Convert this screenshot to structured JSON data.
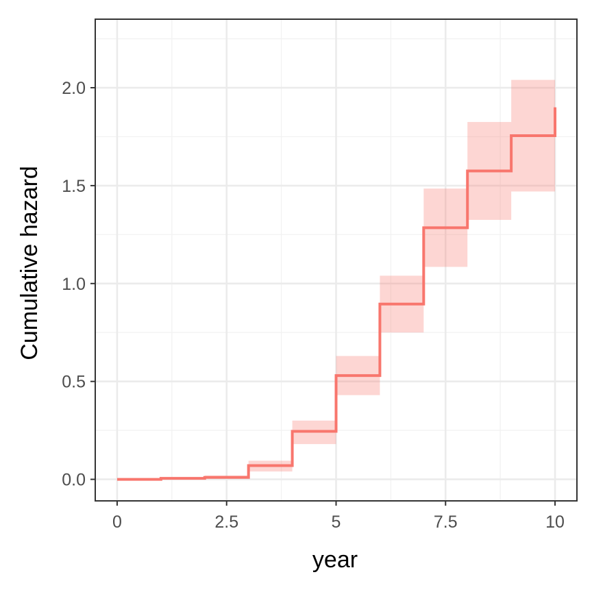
{
  "chart_data": {
    "type": "line",
    "step": true,
    "title": "",
    "xlabel": "year",
    "ylabel": "Cumulative hazard",
    "xlim": [
      -0.5,
      10.5
    ],
    "ylim": [
      -0.11,
      2.35
    ],
    "xticks": [
      0,
      2.5,
      5,
      7.5,
      10
    ],
    "xtick_labels": [
      "0",
      "2.5",
      "5",
      "7.5",
      "10"
    ],
    "yticks": [
      0.0,
      0.5,
      1.0,
      1.5,
      2.0
    ],
    "ytick_labels": [
      "0.0",
      "0.5",
      "1.0",
      "1.5",
      "2.0"
    ],
    "grid": true,
    "legend": "none",
    "colors": {
      "line": "#F8766D",
      "band": "#F8766D"
    },
    "series": [
      {
        "x": [
          0,
          1,
          2,
          3,
          4,
          5,
          6,
          7,
          8,
          9,
          10
        ],
        "y": [
          0.0,
          0.005,
          0.01,
          0.07,
          0.245,
          0.53,
          0.895,
          1.285,
          1.575,
          1.755,
          1.9
        ],
        "lower": [
          0.0,
          0.003,
          0.005,
          0.04,
          0.18,
          0.43,
          0.75,
          1.085,
          1.325,
          1.47,
          1.47
        ],
        "upper": [
          0.0,
          0.008,
          0.02,
          0.095,
          0.3,
          0.63,
          1.04,
          1.485,
          1.825,
          2.04,
          2.04
        ]
      }
    ]
  }
}
